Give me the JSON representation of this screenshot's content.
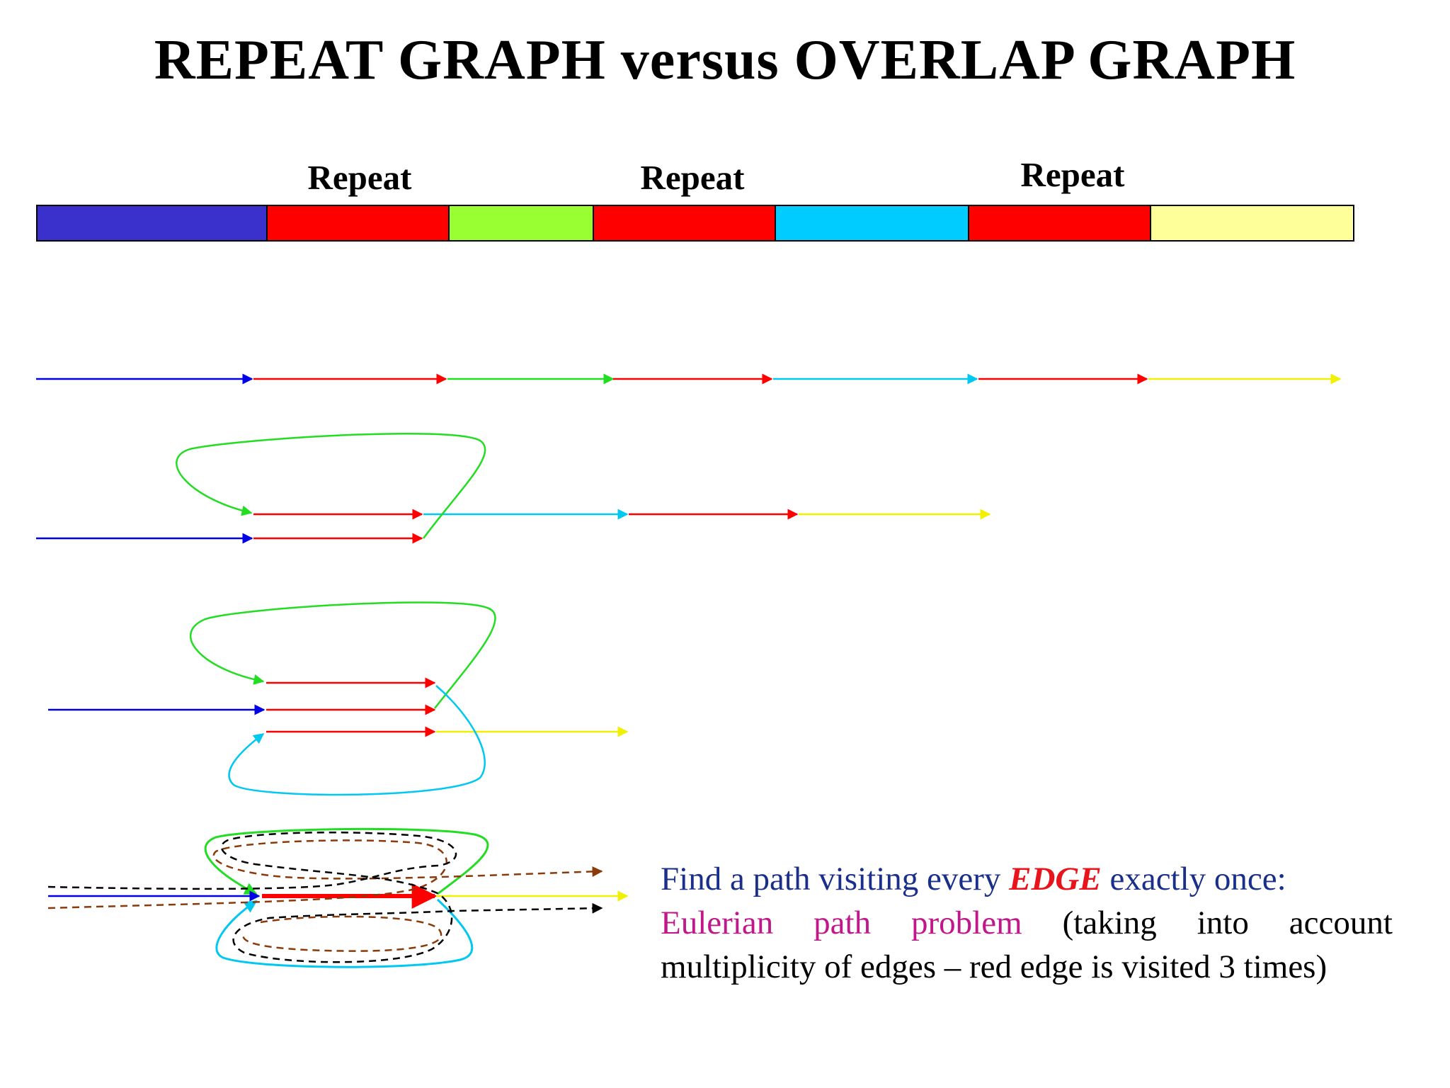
{
  "title": "REPEAT GRAPH versus OVERLAP GRAPH",
  "repeat_labels": [
    "Repeat",
    "Repeat",
    "Repeat"
  ],
  "genome": {
    "segments": [
      {
        "name": "blue",
        "color": "#3a30cc",
        "share": 0.175
      },
      {
        "name": "repeat-1",
        "color": "#ff0000",
        "share": 0.138
      },
      {
        "name": "green",
        "color": "#99ff33",
        "share": 0.11
      },
      {
        "name": "repeat-2",
        "color": "#ff0000",
        "share": 0.138
      },
      {
        "name": "cyan",
        "color": "#00ccff",
        "share": 0.147
      },
      {
        "name": "repeat-3",
        "color": "#ff0000",
        "share": 0.138
      },
      {
        "name": "yellow",
        "color": "#ffff99",
        "share": 0.154
      }
    ]
  },
  "colors": {
    "blue": "#0000e6",
    "red": "#ff0000",
    "green": "#22dd22",
    "cyan": "#00c8f0",
    "yellow": "#f0f000",
    "brown": "#8b3a0a",
    "black": "#000000",
    "caption_navy": "#1a2f8a",
    "caption_magenta": "#c0188a",
    "caption_red": "#e8131b"
  },
  "caption": {
    "line1_part1": "Find a path visiting every ",
    "line1_edge": "EDGE",
    "line1_part2": " exactly once:",
    "line2_words": [
      "Eulerian",
      "path",
      "problem",
      "(taking",
      "into",
      "account"
    ],
    "line3": "multiplicity of edges – red edge is visited 3 times)"
  }
}
